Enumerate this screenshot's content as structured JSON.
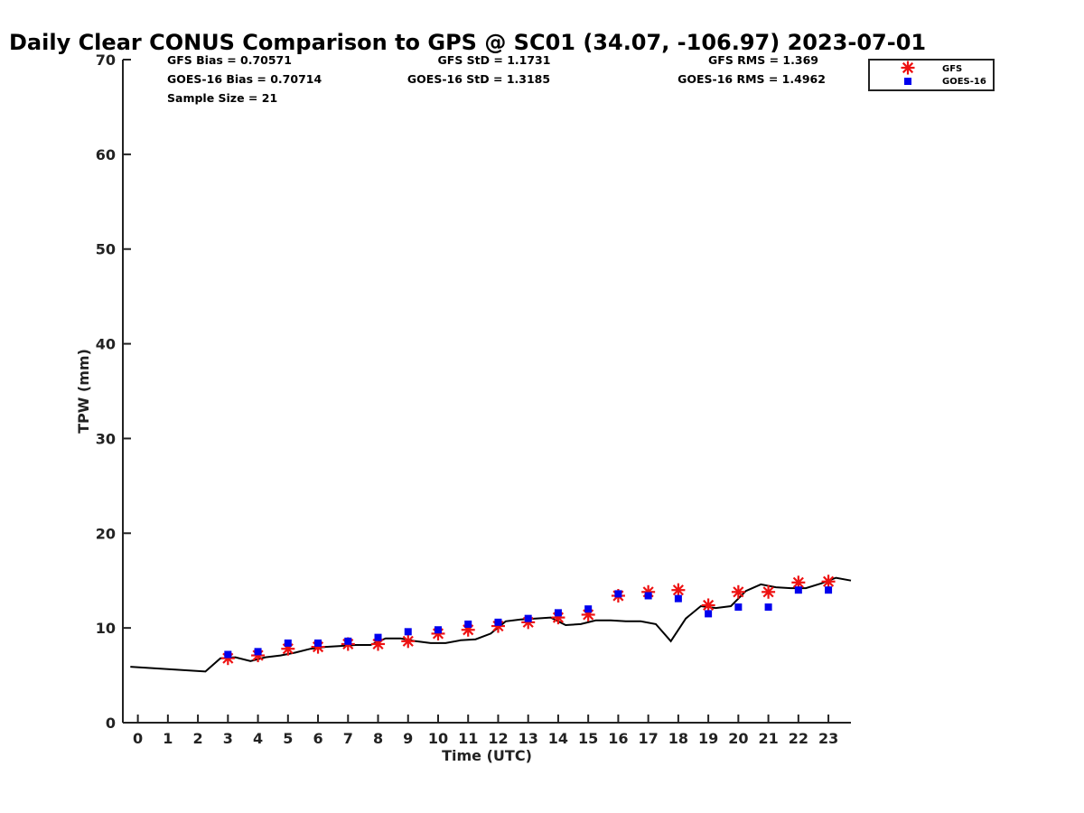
{
  "chart_data": {
    "type": "line",
    "title": "Daily Clear CONUS Comparison to GPS @ SC01 (34.07, -106.97) 2023-07-01",
    "xlabel": "Time (UTC)",
    "ylabel": "TPW (mm)",
    "xlim": [
      -0.5,
      23.75
    ],
    "ylim": [
      0,
      70
    ],
    "x_ticks": [
      0,
      1,
      2,
      3,
      4,
      5,
      6,
      7,
      8,
      9,
      10,
      11,
      12,
      13,
      14,
      15,
      16,
      17,
      18,
      19,
      20,
      21,
      22,
      23
    ],
    "x_tick_labels": [
      "0",
      "1",
      "2",
      "3",
      "4",
      "5",
      "6",
      "7",
      "8",
      "9",
      "10",
      "11",
      "12",
      "13",
      "14",
      "15",
      "16",
      "17",
      "18",
      "19",
      "20",
      "21",
      "22",
      "23"
    ],
    "y_ticks": [
      0,
      10,
      20,
      30,
      40,
      50,
      60,
      70
    ],
    "y_tick_labels": [
      "0",
      "10",
      "20",
      "30",
      "40",
      "50",
      "60",
      "70"
    ],
    "grid": false,
    "legend_position": "top-right",
    "stats": {
      "gfs_bias": "GFS Bias = 0.70571",
      "goes_bias": "GOES-16 Bias = 0.70714",
      "sample_size": "Sample Size = 21",
      "gfs_std": "GFS StD = 1.1731",
      "goes_std": "GOES-16 StD = 1.3185",
      "gfs_rms": "GFS RMS = 1.369",
      "goes_rms": "GOES-16 RMS = 1.4962"
    },
    "series": [
      {
        "kind": "line",
        "color": "#000000",
        "x": [
          -0.25,
          2.25,
          2.75,
          3.25,
          3.75,
          4.25,
          4.75,
          5.25,
          5.75,
          6.25,
          6.75,
          7.25,
          7.75,
          8.25,
          8.75,
          9.25,
          9.75,
          10.25,
          10.75,
          11.25,
          11.75,
          12.25,
          12.75,
          13.25,
          13.75,
          14.25,
          14.75,
          15.25,
          15.75,
          16.25,
          16.75,
          17.25,
          17.75,
          18.25,
          18.75,
          19.25,
          19.75,
          20.25,
          20.75,
          21.25,
          21.75,
          22.25,
          22.75,
          23.25,
          23.75
        ],
        "y": [
          5.9,
          5.4,
          6.8,
          6.9,
          6.5,
          6.9,
          7.1,
          7.4,
          7.8,
          8.0,
          8.1,
          8.2,
          8.2,
          8.9,
          8.9,
          8.6,
          8.4,
          8.4,
          8.7,
          8.8,
          9.4,
          10.7,
          10.9,
          11.0,
          11.1,
          10.3,
          10.4,
          10.8,
          10.8,
          10.7,
          10.7,
          10.4,
          8.6,
          11.0,
          12.3,
          12.1,
          12.3,
          13.9,
          14.6,
          14.3,
          14.2,
          14.2,
          14.7,
          15.3,
          15.0
        ]
      },
      {
        "kind": "scatter",
        "name": "GFS",
        "marker": "star",
        "color": "#ee1111",
        "x": [
          3,
          4,
          5,
          6,
          7,
          8,
          9,
          10,
          11,
          12,
          13,
          14,
          15,
          16,
          17,
          18,
          19,
          20,
          21,
          22,
          23
        ],
        "y": [
          6.8,
          7.1,
          7.8,
          8.0,
          8.3,
          8.3,
          8.6,
          9.4,
          9.8,
          10.2,
          10.6,
          11.1,
          11.4,
          13.4,
          13.8,
          14.0,
          12.4,
          13.8,
          13.8,
          14.8,
          14.9
        ]
      },
      {
        "kind": "scatter",
        "name": "GOES-16",
        "marker": "square",
        "color": "#0000ee",
        "x": [
          3,
          4,
          5,
          6,
          7,
          8,
          9,
          10,
          11,
          12,
          13,
          14,
          15,
          16,
          17,
          18,
          19,
          20,
          21,
          22,
          23
        ],
        "y": [
          7.2,
          7.5,
          8.4,
          8.4,
          8.6,
          9.0,
          9.6,
          9.8,
          10.4,
          10.6,
          11.0,
          11.6,
          12.0,
          13.6,
          13.4,
          13.1,
          11.5,
          12.2,
          12.2,
          14.0,
          14.0
        ]
      }
    ]
  }
}
